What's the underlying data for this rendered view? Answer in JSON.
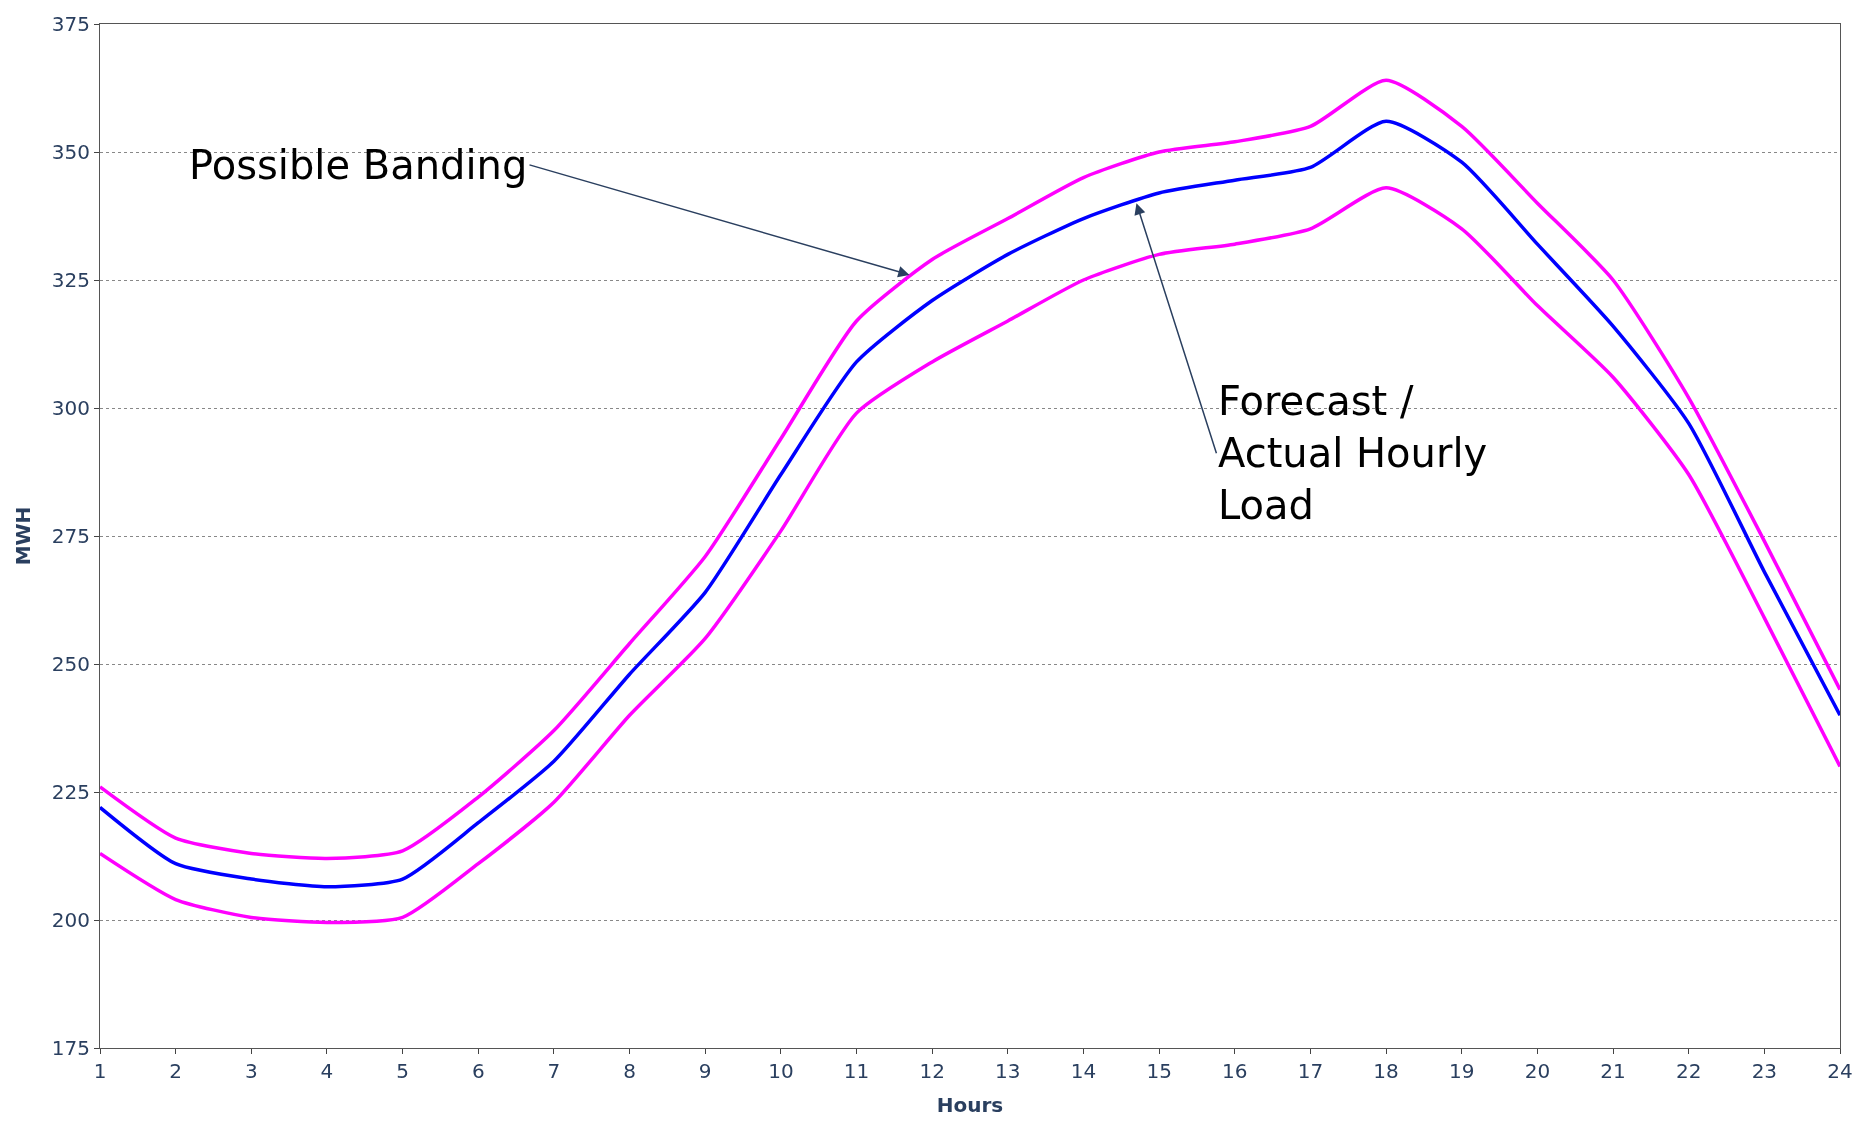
{
  "chart_data": {
    "type": "line",
    "xlabel": "Hours",
    "ylabel": "MWH",
    "x": [
      1,
      2,
      3,
      4,
      5,
      6,
      7,
      8,
      9,
      10,
      11,
      12,
      13,
      14,
      15,
      16,
      17,
      18,
      19,
      20,
      21,
      22,
      23,
      24
    ],
    "series": [
      {
        "color": "#ff00ff",
        "values": [
          226,
          216,
          213,
          212,
          213.5,
          224,
          237,
          254,
          271,
          294,
          317,
          329,
          337,
          345,
          350,
          352,
          355,
          364,
          355,
          340,
          325,
          302,
          274,
          245
        ]
      },
      {
        "color": "#0000ff",
        "values": [
          222,
          211,
          208,
          206.5,
          208,
          219,
          231,
          248,
          264,
          287,
          309,
          321,
          330,
          337,
          342,
          344.5,
          347,
          356,
          348,
          332,
          316,
          297,
          268,
          240
        ]
      },
      {
        "color": "#ff00ff",
        "values": [
          213,
          204,
          200.5,
          199.5,
          200.5,
          211,
          223,
          240,
          255,
          276,
          299,
          309,
          317,
          325,
          330,
          332,
          335,
          343,
          335,
          320,
          306,
          287,
          259,
          230
        ]
      }
    ],
    "annotations": [
      {
        "text": "Possible Banding",
        "x": 11.7,
        "y": 326
      },
      {
        "text": "Forecast / Actual Hourly Load",
        "x": 14.7,
        "y": 340
      }
    ],
    "xlim": [
      1,
      24
    ],
    "xticks": [
      1,
      2,
      3,
      4,
      5,
      6,
      7,
      8,
      9,
      10,
      11,
      12,
      13,
      14,
      15,
      16,
      17,
      18,
      19,
      20,
      21,
      22,
      23,
      24
    ],
    "ylim": [
      175,
      375
    ],
    "yticks": [
      175,
      200,
      225,
      250,
      275,
      300,
      325,
      350,
      375
    ],
    "grid": "y",
    "marker": "none",
    "line_style": "solid"
  }
}
